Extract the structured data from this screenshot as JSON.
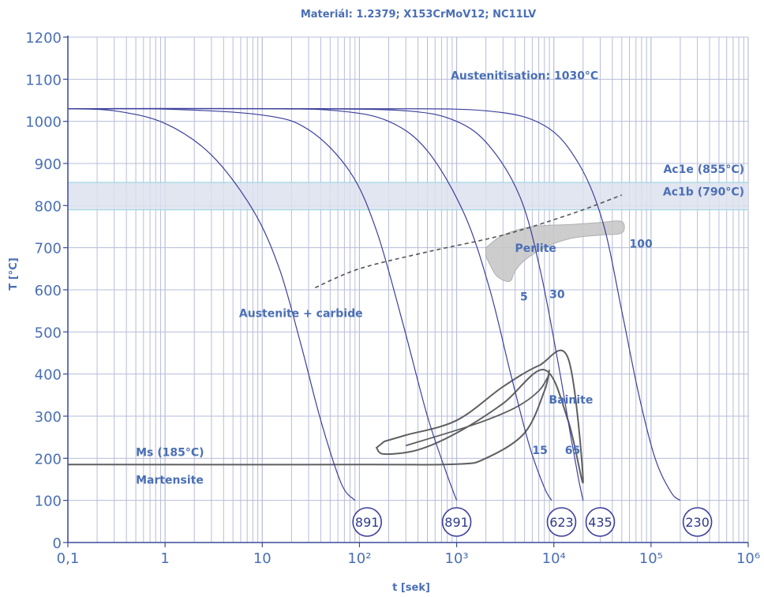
{
  "chart_data": {
    "type": "line",
    "title": "Materiál: 1.2379; X153CrMoV12; NC11LV",
    "xlabel": "t [sek]",
    "ylabel": "T [°C]",
    "x_scale": "log",
    "xlim": [
      0.1,
      1000000
    ],
    "ylim": [
      0,
      1200
    ],
    "x_ticks": [
      {
        "v": 0.1,
        "label": "0,1"
      },
      {
        "v": 1,
        "label": "1"
      },
      {
        "v": 10,
        "label": "10"
      },
      {
        "v": 100,
        "label": "10²"
      },
      {
        "v": 1000,
        "label": "10³"
      },
      {
        "v": 10000,
        "label": "10⁴"
      },
      {
        "v": 100000,
        "label": "10⁵"
      },
      {
        "v": 1000000,
        "label": "10⁶"
      }
    ],
    "y_ticks": [
      0,
      100,
      200,
      300,
      400,
      500,
      600,
      700,
      800,
      900,
      1000,
      1100,
      1200
    ],
    "grid": true,
    "critical_band": {
      "lower": 790,
      "upper": 855
    },
    "cooling_curves": [
      {
        "points": [
          [
            0.1,
            1030
          ],
          [
            0.3,
            1025
          ],
          [
            1,
            995
          ],
          [
            3,
            920
          ],
          [
            8,
            790
          ],
          [
            15,
            650
          ],
          [
            25,
            470
          ],
          [
            40,
            290
          ],
          [
            65,
            140
          ],
          [
            90,
            100
          ]
        ]
      },
      {
        "points": [
          [
            0.1,
            1030
          ],
          [
            1,
            1029
          ],
          [
            10,
            1015
          ],
          [
            30,
            980
          ],
          [
            80,
            880
          ],
          [
            150,
            740
          ],
          [
            280,
            520
          ],
          [
            500,
            300
          ],
          [
            800,
            160
          ],
          [
            1000,
            100
          ]
        ]
      },
      {
        "points": [
          [
            0.1,
            1030
          ],
          [
            10,
            1030
          ],
          [
            60,
            1025
          ],
          [
            200,
            1000
          ],
          [
            500,
            930
          ],
          [
            1200,
            780
          ],
          [
            2200,
            600
          ],
          [
            3600,
            400
          ],
          [
            5600,
            230
          ],
          [
            8000,
            130
          ],
          [
            9500,
            100
          ]
        ]
      },
      {
        "points": [
          [
            0.1,
            1030
          ],
          [
            20,
            1030
          ],
          [
            300,
            1025
          ],
          [
            1000,
            1000
          ],
          [
            2200,
            940
          ],
          [
            4500,
            820
          ],
          [
            7200,
            650
          ],
          [
            11000,
            430
          ],
          [
            15000,
            250
          ],
          [
            18000,
            150
          ],
          [
            20000,
            100
          ]
        ]
      },
      {
        "points": [
          [
            0.1,
            1030
          ],
          [
            100,
            1030
          ],
          [
            2000,
            1025
          ],
          [
            8000,
            990
          ],
          [
            18000,
            900
          ],
          [
            32000,
            760
          ],
          [
            50000,
            550
          ],
          [
            75000,
            350
          ],
          [
            110000,
            200
          ],
          [
            160000,
            120
          ],
          [
            200000,
            100
          ]
        ]
      }
    ],
    "ac1_line": {
      "points": [
        [
          35,
          605
        ],
        [
          100,
          650
        ],
        [
          500,
          690
        ],
        [
          3000,
          730
        ],
        [
          15000,
          780
        ],
        [
          50000,
          825
        ]
      ]
    },
    "pearlite_region": {
      "outline": [
        [
          2000,
          700
        ],
        [
          3000,
          730
        ],
        [
          6000,
          750
        ],
        [
          15000,
          755
        ],
        [
          30000,
          760
        ],
        [
          50000,
          762
        ],
        [
          50000,
          735
        ],
        [
          30000,
          730
        ],
        [
          15000,
          722
        ],
        [
          8000,
          700
        ],
        [
          5000,
          670
        ],
        [
          4000,
          645
        ],
        [
          3500,
          620
        ],
        [
          2600,
          632
        ],
        [
          2200,
          660
        ],
        [
          2000,
          680
        ]
      ]
    },
    "bainite_region": {
      "outline": [
        [
          180,
          240
        ],
        [
          300,
          255
        ],
        [
          1000,
          290
        ],
        [
          3000,
          370
        ],
        [
          7000,
          420
        ],
        [
          14000,
          438
        ],
        [
          20000,
          145
        ],
        [
          14000,
          290
        ],
        [
          8000,
          410
        ],
        [
          3000,
          330
        ],
        [
          1000,
          260
        ],
        [
          400,
          220
        ],
        [
          180,
          210
        ],
        [
          150,
          225
        ]
      ]
    },
    "bainite_inner_line": {
      "points": [
        [
          300,
          230
        ],
        [
          1500,
          280
        ],
        [
          4000,
          320
        ],
        [
          7000,
          360
        ],
        [
          9000,
          400
        ]
      ]
    },
    "martensite_start": {
      "points": [
        [
          0.1,
          185
        ],
        [
          100,
          185
        ],
        [
          1000,
          186
        ],
        [
          2000,
          200
        ],
        [
          5000,
          260
        ],
        [
          8000,
          360
        ],
        [
          9000,
          410
        ]
      ]
    },
    "labels": {
      "austenitisation": "Austenitisation: 1030°C",
      "ac1e": "Ac1e (855°C)",
      "ac1b": "Ac1b (790°C)",
      "perlite": "Perlite",
      "bainite": "Bainite",
      "austenite_carbide": "Austenite + carbide",
      "ms": "Ms (185°C)",
      "martensite": "Martensite"
    },
    "phase_percentages": [
      {
        "text": "100",
        "t": 60000,
        "T": 700
      },
      {
        "text": "5",
        "t": 4500,
        "T": 575
      },
      {
        "text": "30",
        "t": 9000,
        "T": 580
      },
      {
        "text": "15",
        "t": 6000,
        "T": 210
      },
      {
        "text": "65",
        "t": 13000,
        "T": 210
      }
    ],
    "hardness": [
      {
        "value": "891",
        "t": 120
      },
      {
        "value": "891",
        "t": 1000
      },
      {
        "value": "623",
        "t": 12000
      },
      {
        "value": "435",
        "t": 30000
      },
      {
        "value": "230",
        "t": 300000
      }
    ],
    "colors": {
      "grid": "#b7bdd8",
      "axis": "#3a4a9a",
      "curve": "#3c3f9c",
      "band": "#dde2ee",
      "band_line": "#9fd6e2",
      "region": "#5f5f5f",
      "pearlite_fill": "#c8c8c8",
      "text": "#4a6fb5"
    }
  }
}
